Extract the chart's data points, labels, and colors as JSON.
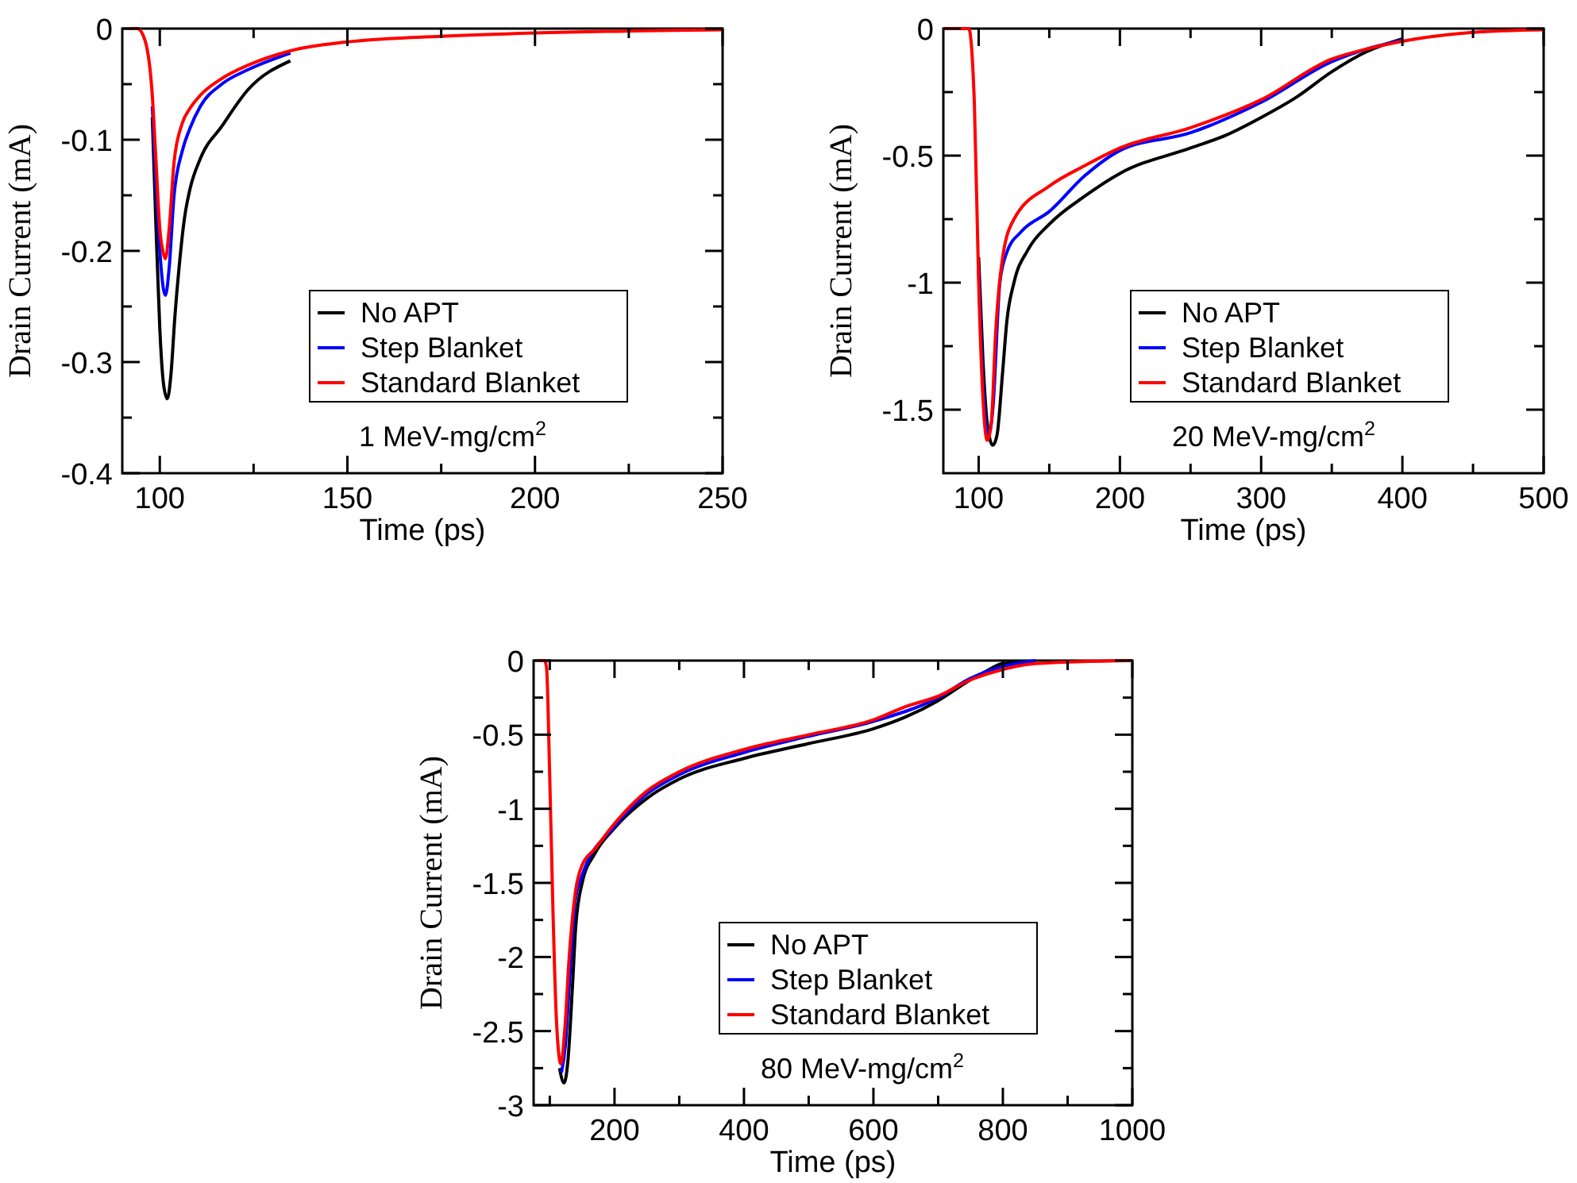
{
  "chart_data": [
    {
      "type": "line",
      "xlabel": "Time (ps)",
      "ylabel": "Drain Current (mA)",
      "xlim": [
        90,
        250
      ],
      "xticks": [
        100,
        {
          "value": 125,
          "label": null
        },
        150,
        {
          "value": 175,
          "label": null
        },
        200,
        {
          "value": 225,
          "label": null
        },
        250
      ],
      "ylim": [
        -0.4,
        0
      ],
      "yticks": [
        0,
        {
          "value": -0.05,
          "label": null
        },
        -0.1,
        {
          "value": -0.15,
          "label": null
        },
        -0.2,
        {
          "value": -0.25,
          "label": null
        },
        -0.3,
        {
          "value": -0.35,
          "label": null
        },
        -0.4
      ],
      "legend": "bottom right",
      "annotations": [
        "1 MeV-mg/cm$^{2}$"
      ],
      "series": [
        {
          "name": "No APT",
          "color": "#000000",
          "x": [
            98,
            99,
            100,
            101,
            102,
            103,
            104,
            105,
            106.6,
            108,
            110.8,
            116.5,
            123.5,
            134.8
          ],
          "values": [
            -0.08,
            -0.18,
            -0.27,
            -0.32,
            -0.333,
            -0.31,
            -0.26,
            -0.22,
            -0.17,
            -0.145,
            -0.117,
            -0.088,
            -0.055,
            -0.029
          ]
        },
        {
          "name": "Step Blanket",
          "color": "#0000ff",
          "x": [
            98,
            99,
            100,
            101,
            101.5,
            102.5,
            103.8,
            106,
            108,
            110.8,
            116.5,
            123.5,
            134.8
          ],
          "values": [
            -0.07,
            -0.14,
            -0.2,
            -0.235,
            -0.24,
            -0.215,
            -0.15,
            -0.11,
            -0.09,
            -0.07,
            -0.05,
            -0.037,
            -0.022
          ]
        },
        {
          "name": "Standard Blanket",
          "color": "#ff0000",
          "x": [
            92,
            94,
            96,
            98,
            99,
            100,
            101,
            101.5,
            102.5,
            103.8,
            106,
            108,
            110.8,
            116.5,
            123.5,
            134.8,
            150,
            175,
            200,
            250
          ],
          "values": [
            0,
            0,
            -0.01,
            -0.06,
            -0.12,
            -0.18,
            -0.203,
            -0.207,
            -0.18,
            -0.12,
            -0.085,
            -0.072,
            -0.06,
            -0.045,
            -0.033,
            -0.02,
            -0.012,
            -0.007,
            -0.004,
            -0.001
          ]
        }
      ]
    },
    {
      "type": "line",
      "xlabel": "Time (ps)",
      "ylabel": "Drain Current (mA)",
      "xlim": [
        75,
        500
      ],
      "xticks": [
        100,
        {
          "value": 150,
          "label": null
        },
        200,
        {
          "value": 250,
          "label": null
        },
        300,
        {
          "value": 350,
          "label": null
        },
        400,
        {
          "value": 450,
          "label": null
        },
        500
      ],
      "ylim": [
        -1.75,
        0
      ],
      "yticks": [
        0,
        {
          "value": -0.25,
          "label": null
        },
        -0.5,
        {
          "value": -0.75,
          "label": null
        },
        -1,
        {
          "value": -1.25,
          "label": null
        },
        -1.5
      ],
      "legend": "bottom right",
      "annotations": [
        "20 MeV-mg/cm$^{2}$"
      ],
      "series": [
        {
          "name": "No APT",
          "color": "#000000",
          "x": [
            100,
            103,
            106,
            110,
            113,
            117,
            120,
            125,
            135,
            150,
            175,
            200,
            250,
            275,
            300,
            325,
            350,
            375,
            400
          ],
          "values": [
            -0.9,
            -1.3,
            -1.55,
            -1.64,
            -1.6,
            -1.35,
            -1.15,
            -1.0,
            -0.87,
            -0.77,
            -0.66,
            -0.57,
            -0.47,
            -0.42,
            -0.35,
            -0.27,
            -0.17,
            -0.09,
            -0.04
          ]
        },
        {
          "name": "Step Blanket",
          "color": "#0000ff",
          "x": [
            100,
            103,
            107,
            110,
            115,
            120,
            130,
            150,
            175,
            200,
            250,
            300,
            350,
            375,
            400
          ],
          "values": [
            -0.95,
            -1.4,
            -1.6,
            -1.5,
            -1.0,
            -0.88,
            -0.8,
            -0.72,
            -0.58,
            -0.48,
            -0.41,
            -0.29,
            -0.13,
            -0.08,
            -0.045
          ]
        },
        {
          "name": "Standard Blanket",
          "color": "#ff0000",
          "x": [
            75,
            93,
            97,
            100,
            103,
            106,
            109,
            112,
            117,
            125,
            150,
            175,
            200,
            250,
            300,
            350,
            375,
            400,
            450,
            500
          ],
          "values": [
            0,
            0,
            -0.3,
            -1.0,
            -1.45,
            -1.62,
            -1.55,
            -1.2,
            -0.9,
            -0.75,
            -0.62,
            -0.54,
            -0.47,
            -0.39,
            -0.28,
            -0.12,
            -0.08,
            -0.05,
            -0.015,
            -0.005
          ]
        }
      ]
    },
    {
      "type": "line",
      "xlabel": "Time (ps)",
      "ylabel": "Drain Current (mA)",
      "xlim": [
        75,
        1000
      ],
      "xticks": [
        {
          "value": 100,
          "label": null
        },
        200,
        {
          "value": 300,
          "label": null
        },
        400,
        {
          "value": 500,
          "label": null
        },
        600,
        {
          "value": 700,
          "label": null
        },
        800,
        {
          "value": 900,
          "label": null
        },
        1000
      ],
      "ylim": [
        -3,
        0
      ],
      "yticks": [
        0,
        {
          "value": -0.25,
          "label": null
        },
        -0.5,
        {
          "value": -0.75,
          "label": null
        },
        -1,
        {
          "value": -1.25,
          "label": null
        },
        -1.5,
        {
          "value": -1.75,
          "label": null
        },
        -2,
        {
          "value": -2.25,
          "label": null
        },
        -2.5,
        {
          "value": -2.75,
          "label": null
        },
        -3
      ],
      "legend": "bottom right",
      "annotations": [
        "80 MeV-mg/cm$^{2}$"
      ],
      "series": [
        {
          "name": "No APT",
          "color": "#000000",
          "x": [
            115,
            122,
            128,
            135,
            140,
            150,
            170,
            200,
            250,
            300,
            400,
            500,
            600,
            650,
            700,
            750,
            775,
            800,
            850
          ],
          "values": [
            -2.75,
            -2.85,
            -2.7,
            -2.2,
            -1.8,
            -1.5,
            -1.3,
            -1.13,
            -0.93,
            -0.8,
            -0.66,
            -0.56,
            -0.46,
            -0.38,
            -0.27,
            -0.13,
            -0.07,
            -0.02,
            -0.01
          ]
        },
        {
          "name": "Step Blanket",
          "color": "#0000ff",
          "x": [
            118,
            124,
            130,
            140,
            150,
            200,
            250,
            300,
            400,
            500,
            600,
            700,
            750,
            800,
            850
          ],
          "values": [
            -2.78,
            -2.6,
            -2.2,
            -1.6,
            -1.45,
            -1.12,
            -0.9,
            -0.77,
            -0.62,
            -0.51,
            -0.41,
            -0.25,
            -0.12,
            -0.04,
            0
          ]
        },
        {
          "name": "Standard Blanket",
          "color": "#ff0000",
          "x": [
            82,
            92,
            95,
            100,
            105,
            110,
            117,
            123,
            130,
            140,
            150,
            170,
            200,
            250,
            300,
            400,
            500,
            600,
            650,
            700,
            750,
            800,
            850,
            1000
          ],
          "values": [
            0,
            0,
            -0.05,
            -0.8,
            -1.7,
            -2.4,
            -2.72,
            -2.5,
            -2.0,
            -1.55,
            -1.38,
            -1.27,
            -1.1,
            -0.88,
            -0.75,
            -0.6,
            -0.5,
            -0.4,
            -0.31,
            -0.24,
            -0.13,
            -0.06,
            -0.02,
            0
          ]
        }
      ]
    }
  ]
}
